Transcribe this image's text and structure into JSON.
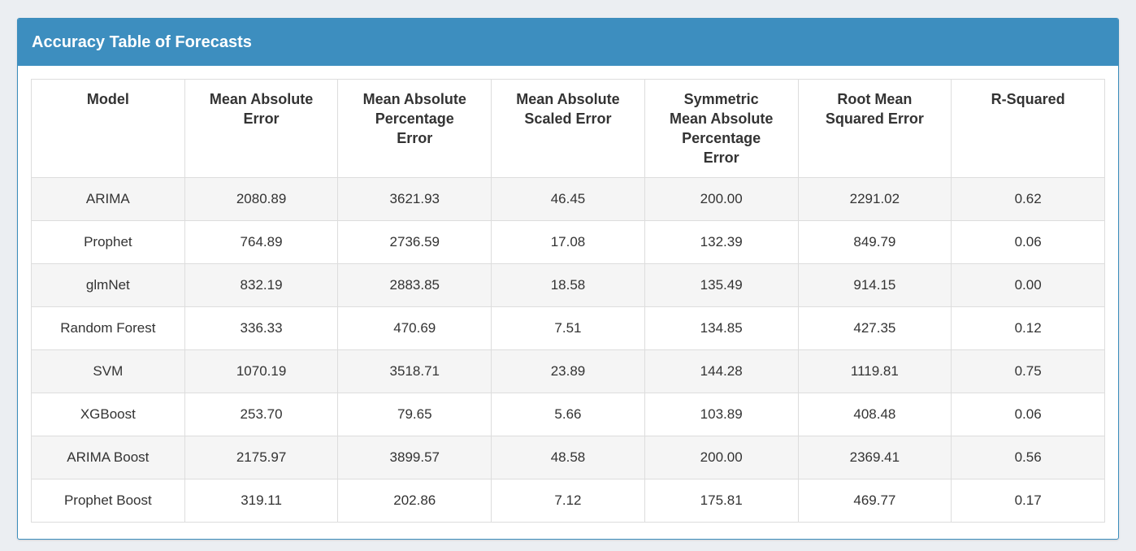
{
  "panel": {
    "title": "Accuracy Table of Forecasts"
  },
  "colors": {
    "page_bg": "#ebeef2",
    "panel_border": "#3c8dbc",
    "header_bg": "#3d8ebf",
    "header_text": "#ffffff",
    "table_border": "#dddddd",
    "stripe_bg": "#f5f5f5",
    "body_text": "#333333"
  },
  "table": {
    "columns": [
      "Model",
      "Mean Absolute\nError",
      "Mean Absolute\nPercentage\nError",
      "Mean Absolute\nScaled Error",
      "Symmetric\nMean Absolute\nPercentage\nError",
      "Root Mean\nSquared Error",
      "R-Squared"
    ],
    "rows": [
      [
        "ARIMA",
        "2080.89",
        "3621.93",
        "46.45",
        "200.00",
        "2291.02",
        "0.62"
      ],
      [
        "Prophet",
        "764.89",
        "2736.59",
        "17.08",
        "132.39",
        "849.79",
        "0.06"
      ],
      [
        "glmNet",
        "832.19",
        "2883.85",
        "18.58",
        "135.49",
        "914.15",
        "0.00"
      ],
      [
        "Random Forest",
        "336.33",
        "470.69",
        "7.51",
        "134.85",
        "427.35",
        "0.12"
      ],
      [
        "SVM",
        "1070.19",
        "3518.71",
        "23.89",
        "144.28",
        "1119.81",
        "0.75"
      ],
      [
        "XGBoost",
        "253.70",
        "79.65",
        "5.66",
        "103.89",
        "408.48",
        "0.06"
      ],
      [
        "ARIMA Boost",
        "2175.97",
        "3899.57",
        "48.58",
        "200.00",
        "2369.41",
        "0.56"
      ],
      [
        "Prophet Boost",
        "319.11",
        "202.86",
        "7.12",
        "175.81",
        "469.77",
        "0.17"
      ]
    ]
  },
  "chart_data": {
    "type": "table",
    "title": "Accuracy Table of Forecasts",
    "columns": [
      "Model",
      "Mean Absolute Error",
      "Mean Absolute Percentage Error",
      "Mean Absolute Scaled Error",
      "Symmetric Mean Absolute Percentage Error",
      "Root Mean Squared Error",
      "R-Squared"
    ],
    "rows": [
      [
        "ARIMA",
        2080.89,
        3621.93,
        46.45,
        200.0,
        2291.02,
        0.62
      ],
      [
        "Prophet",
        764.89,
        2736.59,
        17.08,
        132.39,
        849.79,
        0.06
      ],
      [
        "glmNet",
        832.19,
        2883.85,
        18.58,
        135.49,
        914.15,
        0.0
      ],
      [
        "Random Forest",
        336.33,
        470.69,
        7.51,
        134.85,
        427.35,
        0.12
      ],
      [
        "SVM",
        1070.19,
        3518.71,
        23.89,
        144.28,
        1119.81,
        0.75
      ],
      [
        "XGBoost",
        253.7,
        79.65,
        5.66,
        103.89,
        408.48,
        0.06
      ],
      [
        "ARIMA Boost",
        2175.97,
        3899.57,
        48.58,
        200.0,
        2369.41,
        0.56
      ],
      [
        "Prophet Boost",
        319.11,
        202.86,
        7.12,
        175.81,
        469.77,
        0.17
      ]
    ]
  }
}
